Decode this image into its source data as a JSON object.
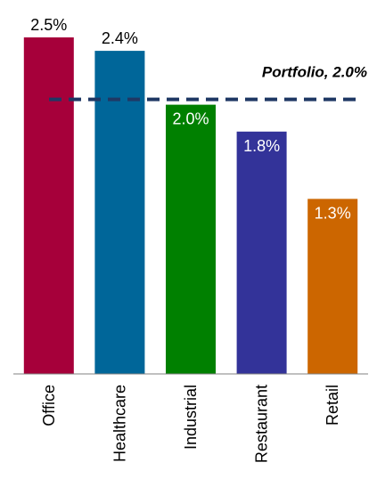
{
  "chart_data": {
    "type": "bar",
    "categories": [
      "Office",
      "Healthcare",
      "Industrial",
      "Restaurant",
      "Retail"
    ],
    "values": [
      2.5,
      2.4,
      2.0,
      1.8,
      1.3
    ],
    "value_labels": [
      "2.5%",
      "2.4%",
      "2.0%",
      "1.8%",
      "1.3%"
    ],
    "colors": [
      "#a6003a",
      "#006699",
      "#008000",
      "#333399",
      "#cc6600"
    ],
    "ylim": [
      0,
      2.5
    ],
    "grid": false,
    "reference_line": {
      "value": 2.0,
      "label": "Portfolio, 2.0%",
      "color": "#1f3864",
      "style": "dashed"
    }
  }
}
